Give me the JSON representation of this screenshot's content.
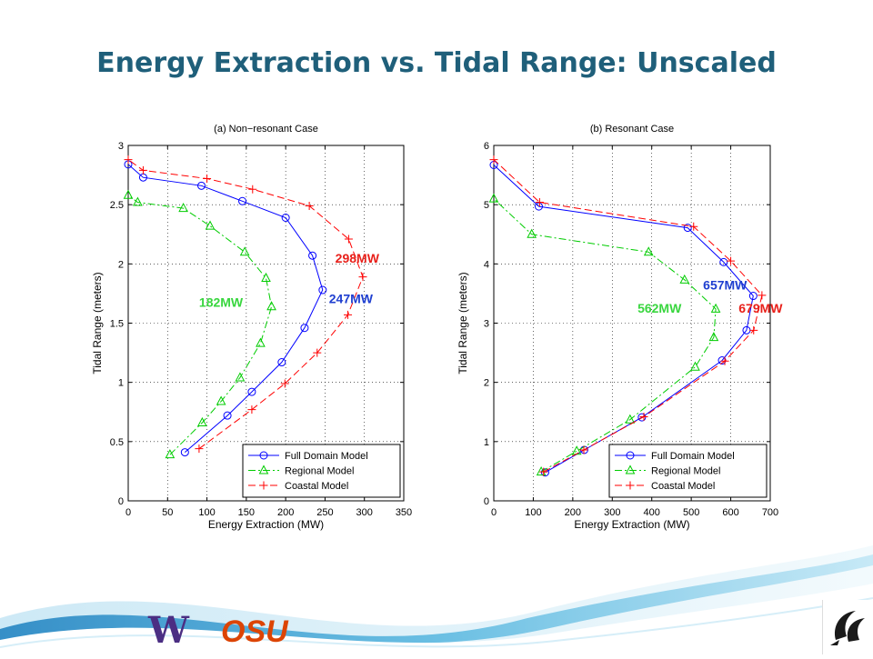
{
  "slide": {
    "title": "Energy Extraction vs. Tidal Range: Unscaled",
    "logos": {
      "left_w": "W",
      "left_osu": "OSU"
    }
  },
  "colors": {
    "title": "#1f5f7a",
    "full": "#0000ff",
    "regional": "#00cc00",
    "coastal": "#ff0000",
    "ann_full": "#1f3fd0",
    "ann_regional": "#39d63f",
    "ann_coastal": "#e8201a"
  },
  "chart_data": [
    {
      "type": "line",
      "title": "(a) Non−resonant Case",
      "xlabel": "Energy Extraction (MW)",
      "ylabel": "Tidal Range (meters)",
      "xlim": [
        0,
        350
      ],
      "ylim": [
        0,
        3
      ],
      "xticks": [
        0,
        50,
        100,
        150,
        200,
        250,
        300,
        350
      ],
      "yticks": [
        0,
        0.5,
        1,
        1.5,
        2,
        2.5,
        3
      ],
      "xtick_labels": [
        "0",
        "50",
        "100",
        "150",
        "200",
        "250",
        "300",
        "350"
      ],
      "ytick_labels": [
        "0",
        "0.5",
        "1",
        "1.5",
        "2",
        "2.5",
        "3"
      ],
      "grid": true,
      "legend_position": "lower-right",
      "series": [
        {
          "name": "Full Domain Model",
          "key": "full",
          "marker": "circle",
          "dash": "solid",
          "points": [
            [
              72,
              0.41
            ],
            [
              126,
              0.72
            ],
            [
              157,
              0.92
            ],
            [
              195,
              1.17
            ],
            [
              224,
              1.46
            ],
            [
              247,
              1.78
            ],
            [
              234,
              2.07
            ],
            [
              200,
              2.39
            ],
            [
              145,
              2.53
            ],
            [
              93,
              2.66
            ],
            [
              19,
              2.73
            ],
            [
              0,
              2.84
            ]
          ]
        },
        {
          "name": "Regional Model",
          "key": "regional",
          "marker": "triangle",
          "dash": "dashdot",
          "points": [
            [
              53,
              0.39
            ],
            [
              94,
              0.66
            ],
            [
              118,
              0.84
            ],
            [
              142,
              1.04
            ],
            [
              168,
              1.33
            ],
            [
              182,
              1.64
            ],
            [
              175,
              1.88
            ],
            [
              148,
              2.1
            ],
            [
              104,
              2.32
            ],
            [
              70,
              2.47
            ],
            [
              12,
              2.52
            ],
            [
              0,
              2.58
            ]
          ]
        },
        {
          "name": "Coastal Model",
          "key": "coastal",
          "marker": "plus",
          "dash": "dashed",
          "points": [
            [
              90,
              0.44
            ],
            [
              157,
              0.77
            ],
            [
              199,
              0.99
            ],
            [
              240,
              1.25
            ],
            [
              279,
              1.57
            ],
            [
              298,
              1.89
            ],
            [
              280,
              2.21
            ],
            [
              230,
              2.49
            ],
            [
              158,
              2.63
            ],
            [
              100,
              2.72
            ],
            [
              19,
              2.79
            ],
            [
              0,
              2.88
            ]
          ]
        }
      ],
      "annotations": [
        {
          "text": "298MW",
          "key": "coastal",
          "x": 263,
          "y": 2.01
        },
        {
          "text": "247MW",
          "key": "full",
          "x": 255,
          "y": 1.67
        },
        {
          "text": "182MW",
          "key": "regional",
          "x": 90,
          "y": 1.64
        }
      ]
    },
    {
      "type": "line",
      "title": "(b) Resonant Case",
      "xlabel": "Energy Extraction (MW)",
      "ylabel": "Tidal Range (meters)",
      "xlim": [
        0,
        700
      ],
      "ylim": [
        0,
        6
      ],
      "xticks": [
        0,
        100,
        200,
        300,
        400,
        500,
        600,
        700
      ],
      "yticks": [
        0,
        1,
        2,
        3,
        4,
        5,
        6
      ],
      "xtick_labels": [
        "0",
        "100",
        "200",
        "300",
        "400",
        "500",
        "600",
        "700"
      ],
      "ytick_labels": [
        "0",
        "1",
        "2",
        "3",
        "4",
        "5",
        "6"
      ],
      "grid": true,
      "legend_position": "lower-right",
      "series": [
        {
          "name": "Full Domain Model",
          "key": "full",
          "marker": "circle",
          "dash": "solid",
          "points": [
            [
              130,
              0.48
            ],
            [
              229,
              0.86
            ],
            [
              375,
              1.41
            ],
            [
              578,
              2.37
            ],
            [
              640,
              2.88
            ],
            [
              657,
              3.46
            ],
            [
              582,
              4.03
            ],
            [
              491,
              4.61
            ],
            [
              114,
              4.97
            ],
            [
              0,
              5.67
            ]
          ]
        },
        {
          "name": "Regional Model",
          "key": "regional",
          "marker": "triangle",
          "dash": "dashdot",
          "points": [
            [
              120,
              0.49
            ],
            [
              210,
              0.84
            ],
            [
              345,
              1.37
            ],
            [
              510,
              2.26
            ],
            [
              557,
              2.76
            ],
            [
              562,
              3.24
            ],
            [
              483,
              3.73
            ],
            [
              392,
              4.2
            ],
            [
              96,
              4.5
            ],
            [
              0,
              5.1
            ]
          ]
        },
        {
          "name": "Coastal Model",
          "key": "coastal",
          "marker": "plus",
          "dash": "dashed",
          "points": [
            [
              126,
              0.49
            ],
            [
              228,
              0.86
            ],
            [
              380,
              1.42
            ],
            [
              585,
              2.36
            ],
            [
              658,
              2.88
            ],
            [
              679,
              3.47
            ],
            [
              600,
              4.05
            ],
            [
              506,
              4.63
            ],
            [
              116,
              5.04
            ],
            [
              0,
              5.76
            ]
          ]
        }
      ],
      "annotations": [
        {
          "text": "657MW",
          "key": "full",
          "x": 530,
          "y": 3.57
        },
        {
          "text": "562MW",
          "key": "regional",
          "x": 364,
          "y": 3.18
        },
        {
          "text": "679MW",
          "key": "coastal",
          "x": 620,
          "y": 3.18
        }
      ]
    }
  ]
}
